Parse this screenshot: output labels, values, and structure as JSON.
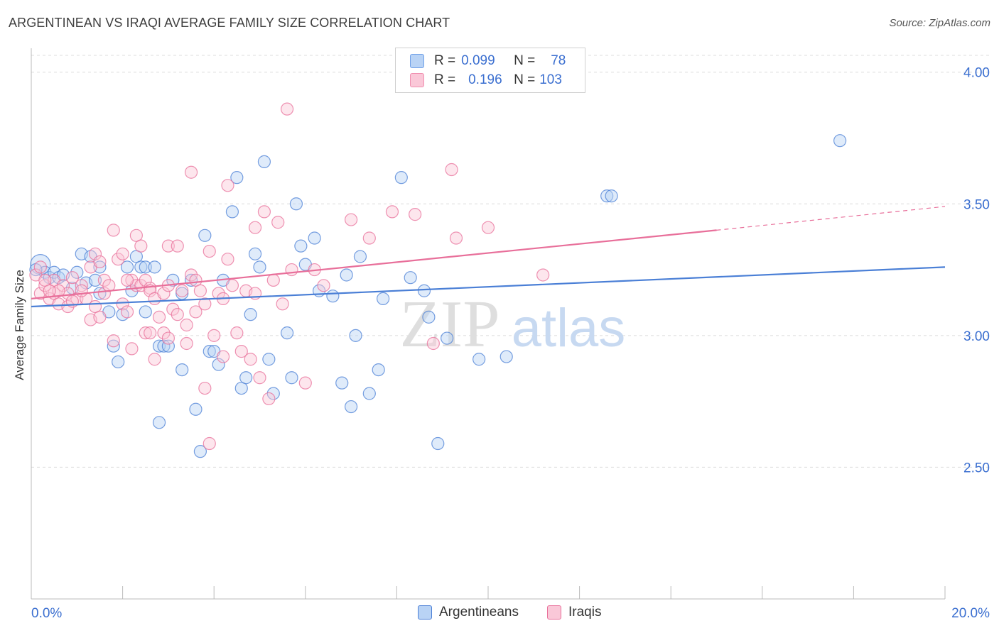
{
  "title": "ARGENTINEAN VS IRAQI AVERAGE FAMILY SIZE CORRELATION CHART",
  "source": "Source: ZipAtlas.com",
  "watermark": {
    "zip": "ZIP",
    "atlas": "atlas"
  },
  "stats": [
    {
      "r_label": "R =",
      "r_value": "0.099",
      "n_label": "N =",
      "n_value": "78",
      "color": "#6fa0e8",
      "fill": "#b9d3f5"
    },
    {
      "r_label": "R =",
      "r_value": "0.196",
      "n_label": "N =",
      "n_value": "103",
      "color": "#f08fb0",
      "fill": "#fac8d8"
    }
  ],
  "chart_data": {
    "type": "scatter",
    "title": "ARGENTINEAN VS IRAQI AVERAGE FAMILY SIZE CORRELATION CHART",
    "ylabel": "Average Family Size",
    "xlabel": "",
    "xlim": [
      0,
      20
    ],
    "ylim": [
      2.0,
      4.08
    ],
    "x_tick_labels": [
      "0.0%",
      "20.0%"
    ],
    "y_ticks": [
      2.5,
      3.0,
      3.5,
      4.0
    ],
    "y_tick_labels": [
      "2.50",
      "3.00",
      "3.50",
      "4.00"
    ],
    "grid": "horizontal dashed",
    "legend_position": "bottom-center",
    "series": [
      {
        "name": "Argentineans",
        "color": "#4a7fd6",
        "fill": "#b9d3f5",
        "trend": {
          "x": [
            0,
            20
          ],
          "y": [
            3.11,
            3.26
          ]
        },
        "points": [
          [
            0.2,
            3.27
          ],
          [
            0.3,
            3.24
          ],
          [
            0.4,
            3.22
          ],
          [
            0.5,
            3.24
          ],
          [
            0.6,
            3.22
          ],
          [
            0.7,
            3.23
          ],
          [
            0.9,
            3.18
          ],
          [
            1.1,
            3.31
          ],
          [
            1.2,
            3.2
          ],
          [
            1.3,
            3.3
          ],
          [
            1.4,
            3.21
          ],
          [
            1.5,
            3.26
          ],
          [
            1.5,
            3.16
          ],
          [
            1.7,
            3.09
          ],
          [
            1.8,
            2.96
          ],
          [
            1.9,
            2.9
          ],
          [
            2.0,
            3.08
          ],
          [
            2.1,
            3.26
          ],
          [
            2.2,
            3.17
          ],
          [
            2.3,
            3.3
          ],
          [
            2.4,
            3.26
          ],
          [
            2.5,
            3.26
          ],
          [
            2.5,
            3.09
          ],
          [
            2.7,
            3.26
          ],
          [
            2.8,
            2.96
          ],
          [
            2.8,
            2.67
          ],
          [
            2.9,
            2.96
          ],
          [
            3.0,
            2.96
          ],
          [
            3.1,
            3.21
          ],
          [
            3.3,
            3.16
          ],
          [
            3.3,
            2.87
          ],
          [
            3.5,
            3.21
          ],
          [
            3.6,
            2.72
          ],
          [
            3.7,
            2.56
          ],
          [
            3.8,
            3.38
          ],
          [
            3.9,
            2.94
          ],
          [
            4.0,
            2.94
          ],
          [
            4.1,
            2.89
          ],
          [
            4.2,
            3.21
          ],
          [
            4.4,
            3.47
          ],
          [
            4.5,
            3.6
          ],
          [
            4.6,
            2.8
          ],
          [
            4.7,
            2.84
          ],
          [
            4.8,
            3.08
          ],
          [
            4.9,
            3.31
          ],
          [
            5.0,
            3.26
          ],
          [
            5.1,
            3.66
          ],
          [
            5.2,
            2.91
          ],
          [
            5.3,
            2.78
          ],
          [
            5.6,
            3.01
          ],
          [
            5.7,
            2.84
          ],
          [
            5.8,
            3.5
          ],
          [
            5.9,
            3.34
          ],
          [
            6.0,
            3.27
          ],
          [
            6.2,
            3.37
          ],
          [
            6.3,
            3.17
          ],
          [
            6.6,
            3.15
          ],
          [
            6.8,
            2.82
          ],
          [
            6.9,
            3.23
          ],
          [
            7.0,
            2.73
          ],
          [
            7.1,
            3.0
          ],
          [
            7.2,
            3.3
          ],
          [
            7.4,
            2.78
          ],
          [
            7.6,
            2.87
          ],
          [
            7.7,
            3.14
          ],
          [
            8.1,
            3.6
          ],
          [
            8.3,
            3.22
          ],
          [
            8.6,
            3.17
          ],
          [
            8.7,
            3.07
          ],
          [
            8.9,
            2.59
          ],
          [
            9.1,
            2.99
          ],
          [
            9.8,
            2.91
          ],
          [
            10.4,
            2.92
          ],
          [
            12.6,
            3.53
          ],
          [
            12.7,
            3.53
          ],
          [
            17.7,
            3.74
          ],
          [
            0.1,
            3.25
          ],
          [
            1.0,
            3.24
          ]
        ]
      },
      {
        "name": "Iraqis",
        "color": "#e86f9a",
        "fill": "#fac8d8",
        "trend": {
          "x": [
            0,
            15
          ],
          "y": [
            3.14,
            3.4
          ]
        },
        "trend_dashed": {
          "x": [
            15,
            20
          ],
          "y": [
            3.4,
            3.49
          ]
        },
        "points": [
          [
            0.1,
            3.23
          ],
          [
            0.2,
            3.26
          ],
          [
            0.2,
            3.16
          ],
          [
            0.3,
            3.19
          ],
          [
            0.4,
            3.14
          ],
          [
            0.5,
            3.21
          ],
          [
            0.5,
            3.16
          ],
          [
            0.6,
            3.12
          ],
          [
            0.7,
            3.19
          ],
          [
            0.8,
            3.16
          ],
          [
            0.8,
            3.11
          ],
          [
            0.9,
            3.22
          ],
          [
            1.0,
            3.14
          ],
          [
            1.1,
            3.19
          ],
          [
            1.2,
            3.14
          ],
          [
            1.3,
            3.26
          ],
          [
            1.3,
            3.06
          ],
          [
            1.4,
            3.11
          ],
          [
            1.4,
            3.31
          ],
          [
            1.5,
            3.28
          ],
          [
            1.6,
            3.16
          ],
          [
            1.6,
            3.21
          ],
          [
            1.7,
            3.19
          ],
          [
            1.8,
            3.4
          ],
          [
            1.8,
            2.98
          ],
          [
            1.9,
            3.29
          ],
          [
            2.0,
            3.31
          ],
          [
            2.0,
            3.12
          ],
          [
            2.1,
            3.09
          ],
          [
            2.2,
            3.21
          ],
          [
            2.2,
            2.95
          ],
          [
            2.3,
            3.38
          ],
          [
            2.3,
            3.19
          ],
          [
            2.4,
            3.34
          ],
          [
            2.4,
            3.19
          ],
          [
            2.5,
            3.01
          ],
          [
            2.5,
            3.21
          ],
          [
            2.6,
            3.18
          ],
          [
            2.6,
            3.17
          ],
          [
            2.7,
            3.14
          ],
          [
            2.7,
            2.91
          ],
          [
            2.8,
            3.07
          ],
          [
            2.9,
            3.01
          ],
          [
            2.9,
            3.16
          ],
          [
            3.0,
            3.19
          ],
          [
            3.0,
            3.34
          ],
          [
            3.1,
            3.1
          ],
          [
            3.2,
            3.34
          ],
          [
            3.2,
            3.08
          ],
          [
            3.3,
            3.17
          ],
          [
            3.4,
            3.04
          ],
          [
            3.4,
            2.97
          ],
          [
            3.5,
            3.62
          ],
          [
            3.5,
            3.23
          ],
          [
            3.6,
            3.21
          ],
          [
            3.7,
            3.17
          ],
          [
            3.8,
            3.12
          ],
          [
            3.8,
            2.8
          ],
          [
            3.9,
            3.32
          ],
          [
            3.9,
            2.59
          ],
          [
            4.1,
            3.16
          ],
          [
            4.2,
            3.14
          ],
          [
            4.3,
            3.29
          ],
          [
            4.3,
            3.57
          ],
          [
            4.4,
            3.19
          ],
          [
            4.5,
            3.01
          ],
          [
            4.6,
            2.94
          ],
          [
            4.7,
            3.17
          ],
          [
            4.8,
            2.91
          ],
          [
            4.9,
            3.41
          ],
          [
            5.0,
            2.84
          ],
          [
            5.1,
            3.47
          ],
          [
            5.2,
            2.76
          ],
          [
            5.3,
            3.21
          ],
          [
            5.4,
            3.43
          ],
          [
            5.5,
            3.12
          ],
          [
            5.6,
            3.86
          ],
          [
            5.7,
            3.25
          ],
          [
            6.0,
            2.82
          ],
          [
            6.2,
            3.25
          ],
          [
            6.4,
            3.19
          ],
          [
            7.0,
            3.44
          ],
          [
            7.4,
            3.37
          ],
          [
            7.9,
            3.47
          ],
          [
            8.4,
            3.46
          ],
          [
            8.8,
            2.97
          ],
          [
            9.2,
            3.63
          ],
          [
            9.3,
            3.37
          ],
          [
            10.0,
            3.41
          ],
          [
            11.2,
            3.23
          ],
          [
            0.3,
            3.21
          ],
          [
            0.6,
            3.17
          ],
          [
            0.9,
            3.13
          ],
          [
            1.1,
            3.17
          ],
          [
            1.5,
            3.07
          ],
          [
            2.1,
            3.21
          ],
          [
            2.6,
            3.01
          ],
          [
            3.0,
            2.99
          ],
          [
            3.6,
            3.09
          ],
          [
            4.0,
            3.0
          ],
          [
            4.2,
            2.92
          ],
          [
            4.9,
            3.16
          ],
          [
            0.4,
            3.17
          ]
        ]
      }
    ]
  }
}
